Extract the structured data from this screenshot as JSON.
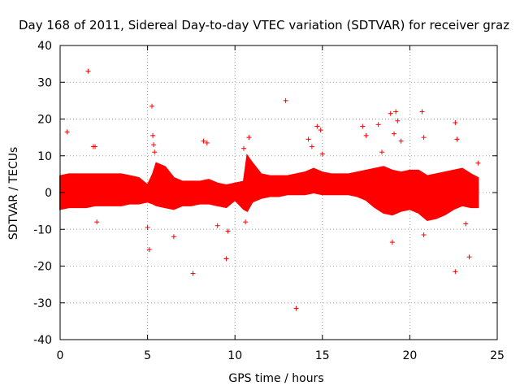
{
  "chart_data": {
    "type": "scatter",
    "title": "Day 168 of 2011, Sidereal Day-to-day VTEC variation (SDTVAR) for receiver graz",
    "xlabel": "GPS time / hours",
    "ylabel": "SDTVAR / TECUs",
    "xlim": [
      0,
      25
    ],
    "ylim": [
      -40,
      40
    ],
    "xticks": [
      0,
      5,
      10,
      15,
      20,
      25
    ],
    "yticks": [
      -40,
      -30,
      -20,
      -10,
      0,
      10,
      20,
      30,
      40
    ],
    "xtick_labels": [
      "0",
      "5",
      "10",
      "15",
      "20",
      "25"
    ],
    "ytick_labels": [
      "-40",
      "-30",
      "-20",
      "-10",
      "0",
      "10",
      "20",
      "30",
      "40"
    ],
    "grid": true,
    "marker": "+",
    "series": [
      {
        "name": "SDTVAR",
        "color": "#ff0000",
        "band": {
          "description": "dense continuous scatter band (upper/lower envelope in TECU)",
          "x": [
            0.0,
            0.5,
            1.0,
            1.5,
            2.0,
            2.5,
            3.0,
            3.5,
            4.0,
            4.5,
            5.0,
            5.3,
            5.5,
            6.0,
            6.5,
            7.0,
            7.5,
            8.0,
            8.5,
            9.0,
            9.5,
            10.0,
            10.5,
            10.7,
            11.0,
            11.5,
            12.0,
            12.5,
            13.0,
            13.5,
            14.0,
            14.5,
            15.0,
            15.5,
            16.0,
            16.5,
            17.0,
            17.5,
            18.0,
            18.5,
            19.0,
            19.5,
            20.0,
            20.5,
            21.0,
            21.5,
            22.0,
            22.5,
            23.0,
            23.5,
            23.9
          ],
          "upper": [
            4.5,
            5.0,
            5.0,
            5.0,
            5.0,
            5.0,
            5.0,
            5.0,
            4.5,
            4.0,
            2.0,
            5.0,
            8.0,
            7.0,
            4.0,
            3.0,
            3.0,
            3.0,
            3.5,
            2.5,
            2.0,
            2.5,
            3.0,
            10.0,
            8.0,
            5.0,
            4.5,
            4.5,
            4.5,
            5.0,
            5.5,
            6.5,
            5.5,
            5.0,
            5.0,
            5.0,
            5.5,
            6.0,
            6.5,
            7.0,
            6.0,
            5.5,
            6.0,
            6.0,
            4.5,
            5.0,
            5.5,
            6.0,
            6.5,
            5.0,
            4.0
          ],
          "lower": [
            -4.5,
            -4.0,
            -4.0,
            -4.0,
            -3.5,
            -3.5,
            -3.5,
            -3.5,
            -3.0,
            -3.0,
            -2.5,
            -3.0,
            -3.5,
            -4.0,
            -4.5,
            -3.5,
            -3.5,
            -3.0,
            -3.0,
            -3.5,
            -4.0,
            -2.0,
            -4.5,
            -5.0,
            -2.5,
            -1.5,
            -1.0,
            -1.0,
            -0.5,
            -0.5,
            -0.5,
            0.0,
            -0.5,
            -0.5,
            -0.5,
            -0.5,
            -1.0,
            -2.0,
            -4.0,
            -5.5,
            -6.0,
            -5.0,
            -4.5,
            -5.5,
            -7.5,
            -7.0,
            -6.0,
            -4.5,
            -3.5,
            -4.0,
            -4.0
          ]
        },
        "outliers": {
          "x": [
            0.4,
            1.6,
            1.9,
            2.0,
            2.1,
            5.0,
            5.1,
            5.25,
            5.3,
            5.35,
            5.4,
            6.5,
            7.6,
            8.2,
            8.4,
            9.0,
            9.5,
            9.6,
            10.6,
            10.8,
            10.5,
            12.9,
            13.5,
            14.2,
            14.4,
            14.7,
            14.9,
            15.0,
            17.3,
            17.5,
            18.2,
            18.4,
            18.9,
            19.0,
            19.1,
            19.2,
            19.3,
            19.5,
            20.7,
            20.8,
            20.8,
            22.6,
            22.7,
            22.6,
            23.2,
            23.4,
            23.9
          ],
          "y": [
            16.5,
            33.0,
            12.5,
            12.5,
            -8.0,
            -9.5,
            -15.5,
            23.5,
            15.5,
            13.0,
            11.0,
            -12.0,
            -22.0,
            14.0,
            13.5,
            -9.0,
            -18.0,
            -10.5,
            -8.0,
            15.0,
            12.0,
            25.0,
            -31.5,
            14.5,
            12.5,
            18.0,
            17.0,
            10.5,
            18.0,
            15.5,
            18.5,
            11.0,
            21.5,
            -13.5,
            16.0,
            22.0,
            19.5,
            14.0,
            22.0,
            15.0,
            -11.5,
            19.0,
            14.5,
            -21.5,
            -8.5,
            -17.5,
            8.0
          ]
        }
      }
    ]
  }
}
